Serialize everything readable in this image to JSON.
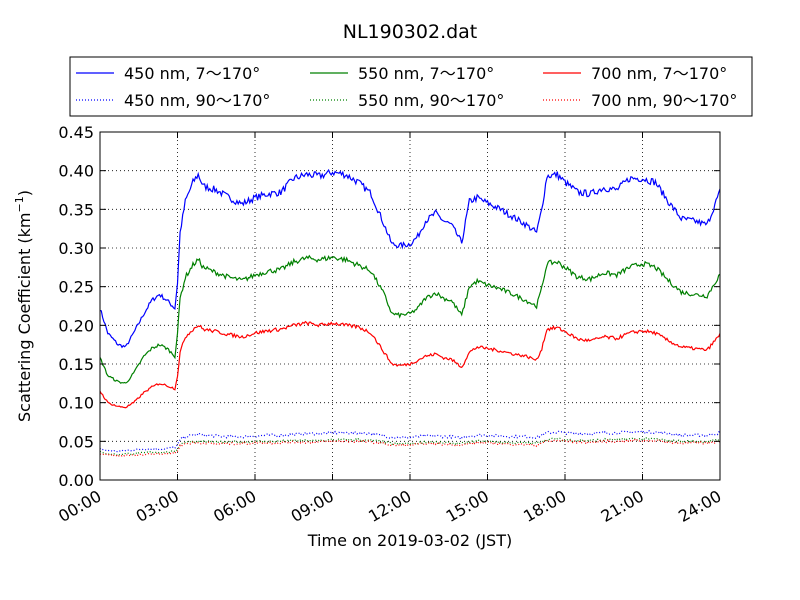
{
  "chart_data": {
    "type": "line",
    "title": "NL190302.dat",
    "xlabel": "Time on 2019-03-02 (JST)",
    "ylabel": "Scattering Coefficient (km",
    "ylabel_sup": "−1",
    "ylabel_close": ")",
    "xlim": [
      0,
      24
    ],
    "ylim": [
      0,
      0.45
    ],
    "x_ticks": [
      0,
      3,
      6,
      9,
      12,
      15,
      18,
      21,
      24
    ],
    "x_tick_labels": [
      "00:00",
      "03:00",
      "06:00",
      "09:00",
      "12:00",
      "15:00",
      "18:00",
      "21:00",
      "24:00"
    ],
    "y_ticks": [
      0,
      0.05,
      0.1,
      0.15,
      0.2,
      0.25,
      0.3,
      0.35,
      0.4,
      0.45
    ],
    "y_tick_labels": [
      "0.00",
      "0.05",
      "0.10",
      "0.15",
      "0.20",
      "0.25",
      "0.30",
      "0.35",
      "0.40",
      "0.45"
    ],
    "grid": true,
    "legend_position": "top",
    "x": [
      0,
      0.3,
      0.7,
      1.0,
      1.3,
      1.7,
      2.0,
      2.3,
      2.6,
      2.9,
      3.0,
      3.1,
      3.3,
      3.6,
      3.8,
      4.0,
      4.5,
      5.0,
      5.5,
      6.0,
      6.5,
      7.0,
      7.5,
      8.0,
      8.5,
      9.0,
      9.5,
      10.0,
      10.5,
      11.0,
      11.3,
      11.6,
      12.0,
      12.3,
      12.6,
      13.0,
      13.3,
      13.6,
      14.0,
      14.3,
      14.6,
      15.0,
      15.5,
      16.0,
      16.5,
      16.9,
      17.1,
      17.3,
      17.7,
      18.0,
      18.5,
      19.0,
      19.5,
      20.0,
      20.5,
      21.0,
      21.5,
      22.0,
      22.5,
      23.0,
      23.5,
      24.0
    ],
    "series": [
      {
        "name": "450 nm, 7～170°",
        "color": "#0000ff",
        "style": "solid",
        "values": [
          0.222,
          0.19,
          0.175,
          0.172,
          0.19,
          0.215,
          0.232,
          0.24,
          0.232,
          0.222,
          0.255,
          0.32,
          0.36,
          0.385,
          0.395,
          0.38,
          0.375,
          0.365,
          0.357,
          0.365,
          0.37,
          0.372,
          0.39,
          0.395,
          0.393,
          0.398,
          0.395,
          0.385,
          0.37,
          0.33,
          0.305,
          0.303,
          0.305,
          0.315,
          0.335,
          0.345,
          0.335,
          0.33,
          0.307,
          0.36,
          0.365,
          0.358,
          0.35,
          0.34,
          0.33,
          0.32,
          0.35,
          0.393,
          0.395,
          0.385,
          0.372,
          0.37,
          0.378,
          0.375,
          0.39,
          0.39,
          0.385,
          0.36,
          0.338,
          0.335,
          0.33,
          0.373
        ]
      },
      {
        "name": "450 nm, 90～170°",
        "color": "#0000ff",
        "style": "dotted",
        "values": [
          0.04,
          0.038,
          0.037,
          0.038,
          0.039,
          0.04,
          0.04,
          0.04,
          0.041,
          0.042,
          0.045,
          0.052,
          0.056,
          0.058,
          0.059,
          0.058,
          0.057,
          0.056,
          0.056,
          0.057,
          0.058,
          0.058,
          0.059,
          0.06,
          0.06,
          0.061,
          0.061,
          0.061,
          0.06,
          0.057,
          0.055,
          0.055,
          0.055,
          0.056,
          0.057,
          0.057,
          0.056,
          0.056,
          0.054,
          0.057,
          0.058,
          0.058,
          0.057,
          0.056,
          0.056,
          0.055,
          0.058,
          0.061,
          0.062,
          0.061,
          0.06,
          0.06,
          0.061,
          0.061,
          0.062,
          0.062,
          0.062,
          0.06,
          0.058,
          0.058,
          0.058,
          0.061
        ]
      },
      {
        "name": "550 nm, 7～170°",
        "color": "#008000",
        "style": "solid",
        "values": [
          0.158,
          0.135,
          0.127,
          0.125,
          0.138,
          0.16,
          0.17,
          0.175,
          0.17,
          0.16,
          0.19,
          0.235,
          0.262,
          0.278,
          0.285,
          0.275,
          0.268,
          0.262,
          0.258,
          0.265,
          0.27,
          0.272,
          0.282,
          0.287,
          0.285,
          0.288,
          0.285,
          0.278,
          0.27,
          0.24,
          0.215,
          0.213,
          0.215,
          0.222,
          0.235,
          0.242,
          0.235,
          0.232,
          0.213,
          0.25,
          0.257,
          0.252,
          0.247,
          0.24,
          0.232,
          0.225,
          0.248,
          0.28,
          0.282,
          0.275,
          0.262,
          0.26,
          0.268,
          0.265,
          0.275,
          0.28,
          0.275,
          0.258,
          0.243,
          0.24,
          0.238,
          0.266
        ]
      },
      {
        "name": "550 nm, 90～170°",
        "color": "#008000",
        "style": "dotted",
        "values": [
          0.036,
          0.034,
          0.033,
          0.034,
          0.034,
          0.035,
          0.036,
          0.036,
          0.036,
          0.037,
          0.04,
          0.046,
          0.049,
          0.05,
          0.05,
          0.05,
          0.049,
          0.049,
          0.049,
          0.05,
          0.05,
          0.05,
          0.051,
          0.051,
          0.051,
          0.052,
          0.052,
          0.052,
          0.051,
          0.049,
          0.047,
          0.047,
          0.047,
          0.048,
          0.049,
          0.049,
          0.048,
          0.048,
          0.047,
          0.049,
          0.05,
          0.05,
          0.049,
          0.048,
          0.048,
          0.047,
          0.05,
          0.052,
          0.053,
          0.052,
          0.051,
          0.051,
          0.052,
          0.052,
          0.053,
          0.053,
          0.053,
          0.051,
          0.05,
          0.05,
          0.05,
          0.052
        ]
      },
      {
        "name": "700 nm, 7～170°",
        "color": "#ff0000",
        "style": "solid",
        "values": [
          0.115,
          0.1,
          0.095,
          0.094,
          0.1,
          0.113,
          0.12,
          0.125,
          0.122,
          0.118,
          0.135,
          0.165,
          0.185,
          0.195,
          0.2,
          0.195,
          0.192,
          0.188,
          0.185,
          0.19,
          0.193,
          0.195,
          0.2,
          0.203,
          0.2,
          0.203,
          0.2,
          0.198,
          0.19,
          0.165,
          0.15,
          0.148,
          0.15,
          0.155,
          0.16,
          0.163,
          0.158,
          0.156,
          0.146,
          0.165,
          0.172,
          0.17,
          0.167,
          0.163,
          0.16,
          0.155,
          0.17,
          0.195,
          0.197,
          0.192,
          0.182,
          0.18,
          0.185,
          0.183,
          0.19,
          0.193,
          0.19,
          0.18,
          0.172,
          0.17,
          0.168,
          0.188
        ]
      },
      {
        "name": "700 nm, 90～170°",
        "color": "#ff0000",
        "style": "dotted",
        "values": [
          0.034,
          0.032,
          0.031,
          0.032,
          0.032,
          0.033,
          0.034,
          0.034,
          0.034,
          0.035,
          0.038,
          0.044,
          0.047,
          0.048,
          0.048,
          0.048,
          0.047,
          0.047,
          0.047,
          0.048,
          0.048,
          0.048,
          0.049,
          0.049,
          0.049,
          0.05,
          0.05,
          0.05,
          0.049,
          0.047,
          0.045,
          0.045,
          0.045,
          0.046,
          0.047,
          0.047,
          0.046,
          0.046,
          0.045,
          0.047,
          0.048,
          0.048,
          0.047,
          0.046,
          0.046,
          0.045,
          0.048,
          0.05,
          0.051,
          0.05,
          0.049,
          0.049,
          0.05,
          0.05,
          0.051,
          0.051,
          0.051,
          0.049,
          0.048,
          0.048,
          0.048,
          0.05
        ]
      }
    ]
  }
}
